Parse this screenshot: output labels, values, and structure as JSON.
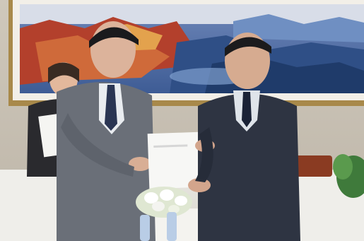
{
  "scene": {
    "alt": "",
    "palette": {
      "wall": "#d9d3c7",
      "frame": "#a8894a",
      "painting_sky": "#4b6fa8",
      "painting_red": "#b3402c",
      "suit_left": "#6a6f78",
      "suit_right": "#2e3442",
      "sofa": "#efeeea",
      "document": "#f7f7f5"
    }
  }
}
